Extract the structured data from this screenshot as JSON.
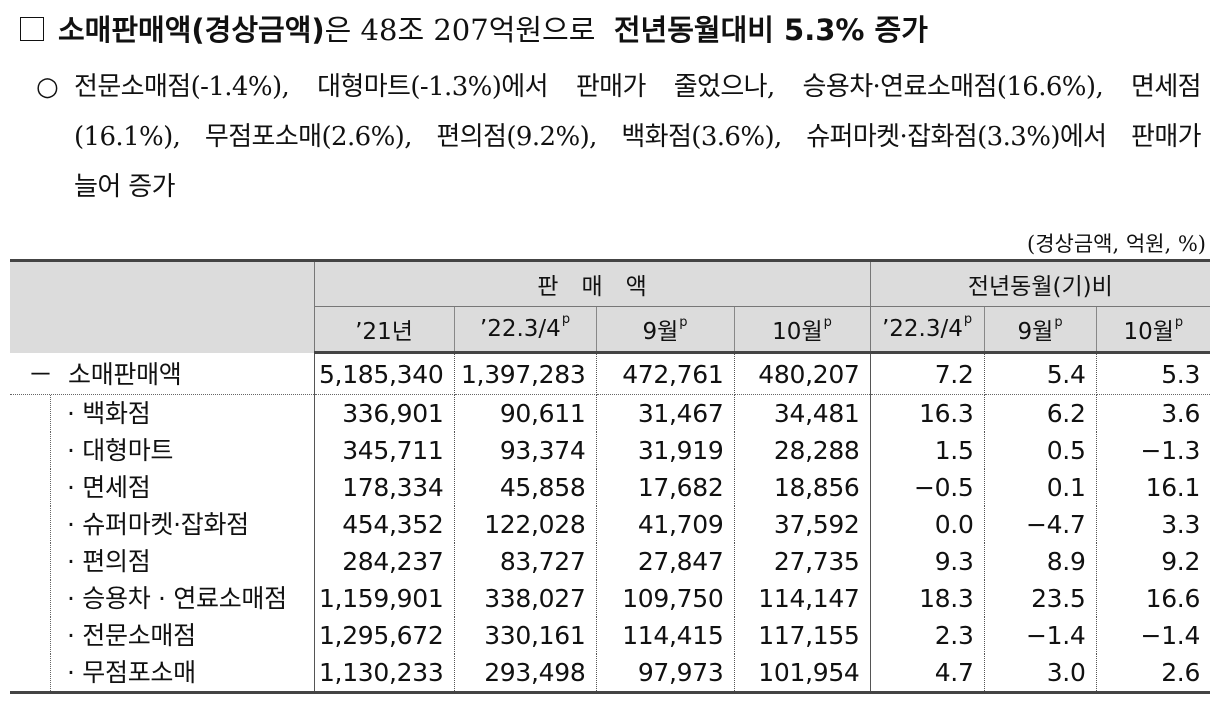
{
  "heading": {
    "bold_part1": "소매판매액(경상금액)",
    "normal_part1": "은 48조 207억원으로",
    "bold_part2": "전년동월대비 5.3% 증가"
  },
  "bullet": {
    "mark": "○",
    "line1": "전문소매점(-1.4%), 대형마트(-1.3%)에서 판매가 줄었으나, 승용차·연료소매점(16.6%), 면세점",
    "line2": "(16.1%), 무점포소매(2.6%), 편의점(9.2%), 백화점(3.6%), 슈퍼마켓·잡화점(3.3%)에서 판매가",
    "line3": "늘어 증가"
  },
  "unit_note": "(경상금액, 억원, %)",
  "table": {
    "group_sales": "판　매　액",
    "group_yoy": "전년동월(기)비",
    "p_mark": "p",
    "cols": [
      "’21년",
      "’22.3/4",
      "9월",
      "10월",
      "’22.3/4",
      "9월",
      "10월"
    ],
    "total": {
      "prefix": "－",
      "label": "소매판매액",
      "values": [
        "5,185,340",
        "1,397,283",
        "472,761",
        "480,207",
        "7.2",
        "5.4",
        "5.3"
      ]
    },
    "rows": [
      {
        "label": "· 백화점",
        "values": [
          "336,901",
          "90,611",
          "31,467",
          "34,481",
          "16.3",
          "6.2",
          "3.6"
        ]
      },
      {
        "label": "· 대형마트",
        "values": [
          "345,711",
          "93,374",
          "31,919",
          "28,288",
          "1.5",
          "0.5",
          "−1.3"
        ]
      },
      {
        "label": "· 면세점",
        "values": [
          "178,334",
          "45,858",
          "17,682",
          "18,856",
          "−0.5",
          "0.1",
          "16.1"
        ]
      },
      {
        "label": "· 슈퍼마켓·잡화점",
        "values": [
          "454,352",
          "122,028",
          "41,709",
          "37,592",
          "0.0",
          "−4.7",
          "3.3"
        ]
      },
      {
        "label": "· 편의점",
        "values": [
          "284,237",
          "83,727",
          "27,847",
          "27,735",
          "9.3",
          "8.9",
          "9.2"
        ]
      },
      {
        "label": "· 승용차 · 연료소매점",
        "values": [
          "1,159,901",
          "338,027",
          "109,750",
          "114,147",
          "18.3",
          "23.5",
          "16.6"
        ]
      },
      {
        "label": "· 전문소매점",
        "values": [
          "1,295,672",
          "330,161",
          "114,415",
          "117,155",
          "2.3",
          "−1.4",
          "−1.4"
        ]
      },
      {
        "label": "· 무점포소매",
        "values": [
          "1,130,233",
          "293,498",
          "97,973",
          "101,954",
          "4.7",
          "3.0",
          "2.6"
        ]
      }
    ]
  }
}
